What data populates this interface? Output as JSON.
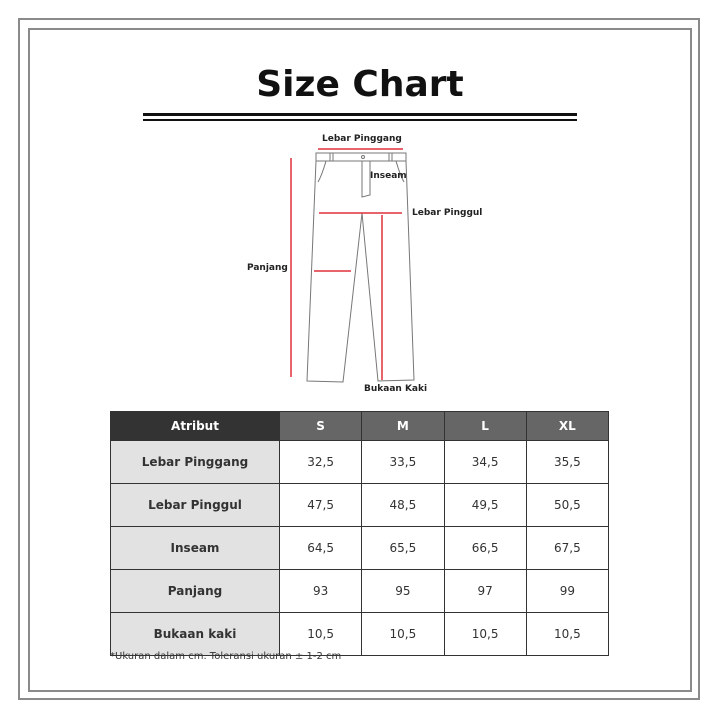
{
  "title": "Size Chart",
  "diagram": {
    "labels": {
      "waist": "Lebar Pinggang",
      "inseam": "Inseam",
      "hip": "Lebar Pinggul",
      "length": "Panjang",
      "leg_opening": "Bukaan Kaki"
    },
    "measure_color": "#e0303c"
  },
  "table": {
    "headers": [
      "Atribut",
      "S",
      "M",
      "L",
      "XL"
    ],
    "rows": [
      {
        "label": "Lebar Pinggang",
        "values": [
          "32,5",
          "33,5",
          "34,5",
          "35,5"
        ]
      },
      {
        "label": "Lebar Pinggul",
        "values": [
          "47,5",
          "48,5",
          "49,5",
          "50,5"
        ]
      },
      {
        "label": "Inseam",
        "values": [
          "64,5",
          "65,5",
          "66,5",
          "67,5"
        ]
      },
      {
        "label": "Panjang",
        "values": [
          "93",
          "95",
          "97",
          "99"
        ]
      },
      {
        "label": "Bukaan kaki",
        "values": [
          "10,5",
          "10,5",
          "10,5",
          "10,5"
        ]
      }
    ]
  },
  "note": "*Ukuran dalam cm. Toleransi ukuran ± 1-2 cm"
}
